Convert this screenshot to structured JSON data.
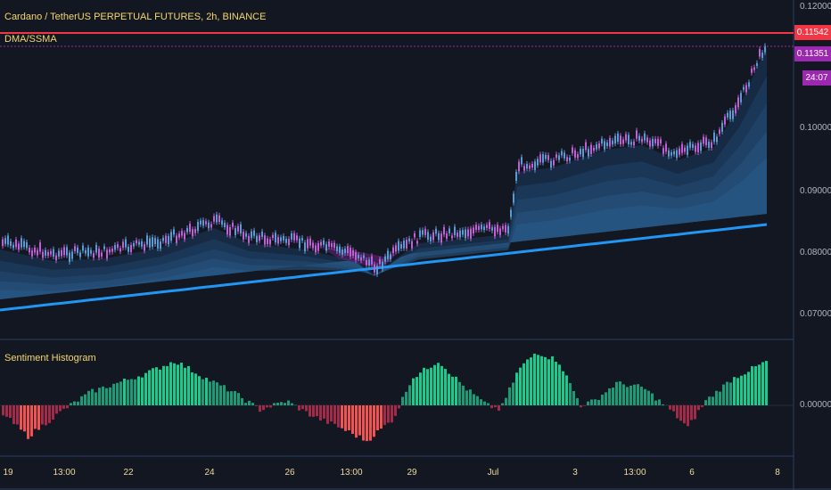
{
  "chart": {
    "title": "Cardano / TetherUS PERPETUAL FUTURES, 2h, BINANCE",
    "indicator_top": "DMA/SSMA",
    "indicator_bottom": "Sentiment Histogram"
  },
  "price_axis": [
    "0.12000",
    "0.10000",
    "0.09000",
    "0.08000",
    "0.07000"
  ],
  "histogram_axis": "0.00000",
  "price_tags": {
    "last_price": "0.11542",
    "ma_value": "0.11351",
    "countdown": "24:07"
  },
  "time_axis": [
    "19",
    "13:00",
    "22",
    "24",
    "26",
    "13:00",
    "29",
    "Jul",
    "3",
    "13:00",
    "6",
    "8"
  ],
  "colors": {
    "background": "#131722",
    "last_price_line": "#f23645",
    "ma_tag": "#9c27b0",
    "long_ma": "#2196f3",
    "hist_positive": "#26a69a",
    "hist_negative": "#ef5350"
  }
}
